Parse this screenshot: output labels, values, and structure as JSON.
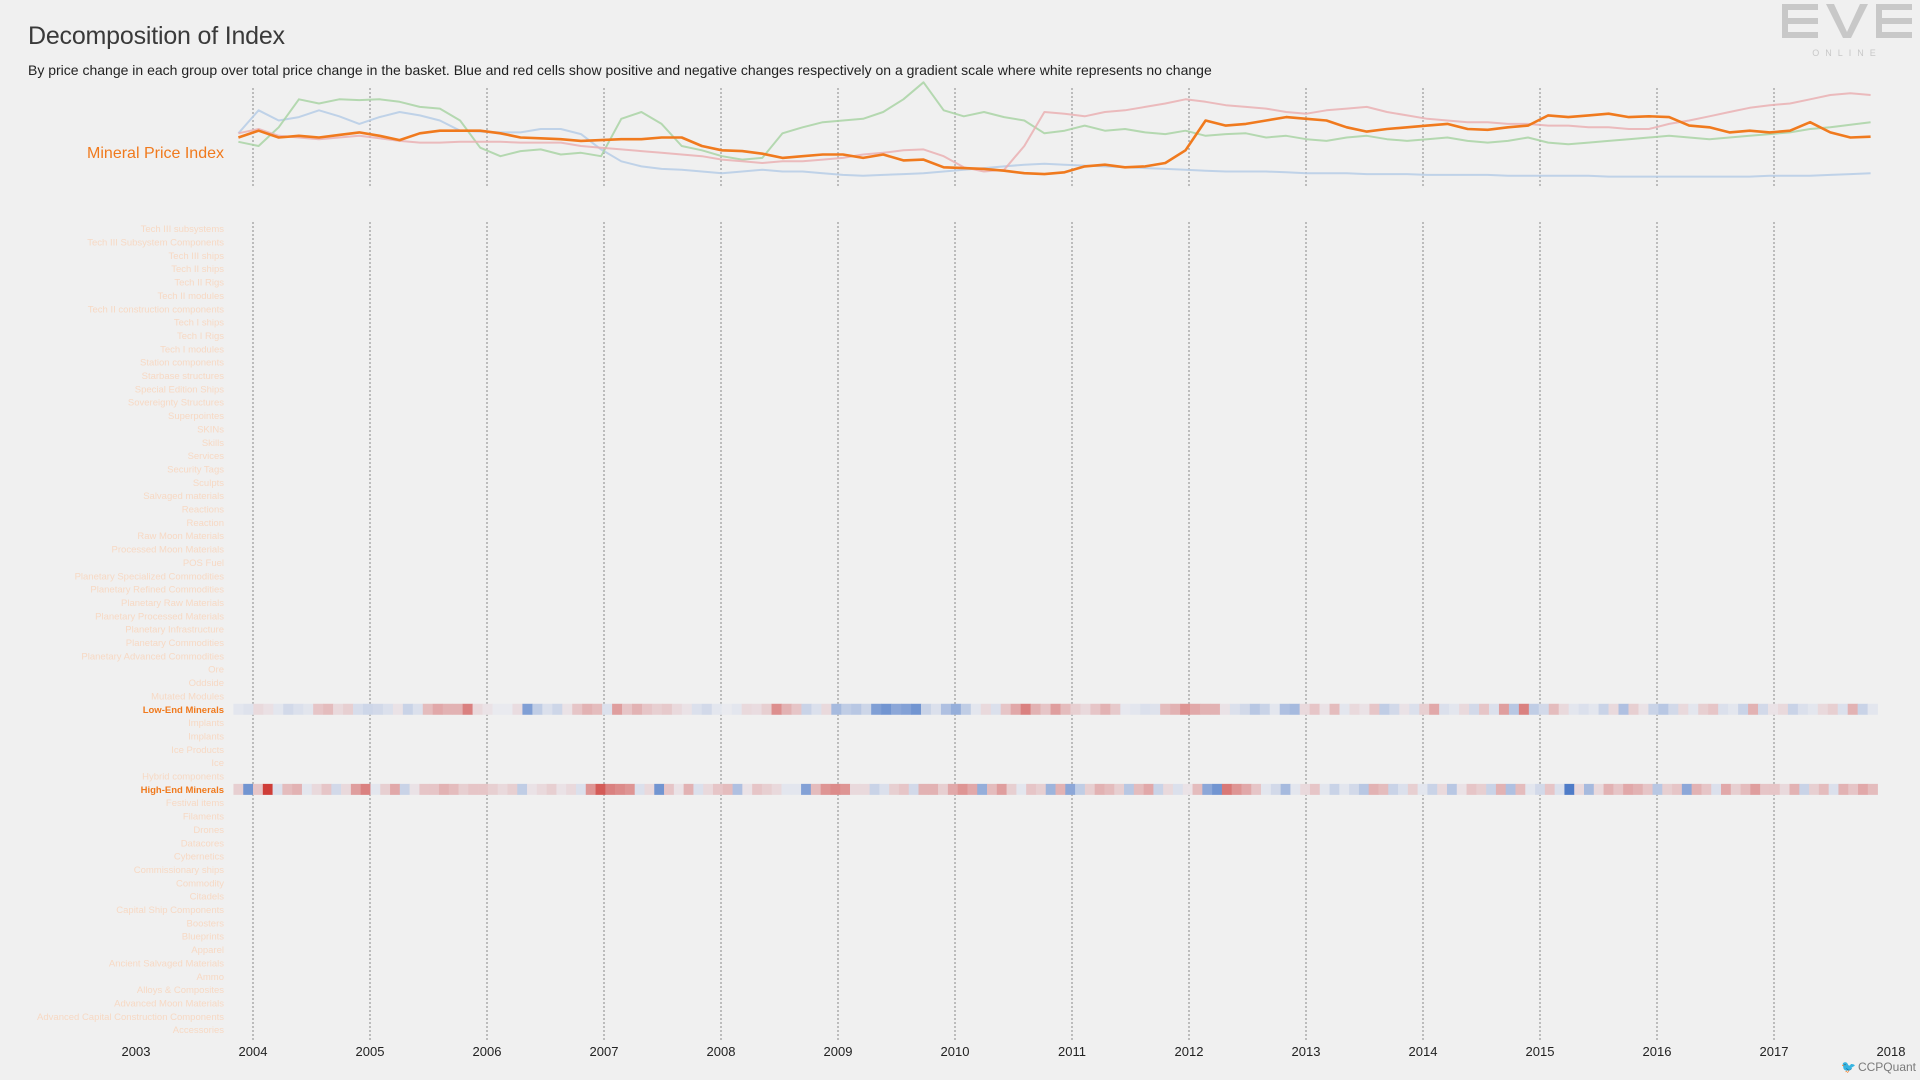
{
  "header": {
    "title": "Decomposition of Index",
    "subtitle": "By price change in each group over total price change in the basket. Blue and red cells show positive and negative changes respectively on a gradient scale where white represents no change"
  },
  "logo": {
    "text": "EVE",
    "subtext": "ONLINE"
  },
  "credit": "CCPQuant",
  "colors": {
    "accent": "#f07a1e",
    "positive": "#3d6fc4",
    "negative": "#cc2a24",
    "faint_label": "#f7d9c4",
    "line_blue": "#b6cde6",
    "line_green": "#a9d4a4",
    "line_pink": "#eab0b3"
  },
  "chart_data": {
    "type": "heatmap",
    "x_ticks": [
      "2003",
      "2004",
      "2005",
      "2006",
      "2007",
      "2008",
      "2009",
      "2010",
      "2011",
      "2012",
      "2013",
      "2014",
      "2015",
      "2016",
      "2017",
      "2018"
    ],
    "xlim": [
      2003,
      2018
    ],
    "data_start": 2003.85,
    "data_end": 2017.8,
    "index_label": "Mineral Price Index",
    "index_series": [
      {
        "name": "Mineral Price Index",
        "color": "#f07a1e",
        "highlight": true,
        "values": [
          0.5,
          0.58,
          0.5,
          0.52,
          0.5,
          0.53,
          0.56,
          0.52,
          0.47,
          0.55,
          0.58,
          0.58,
          0.58,
          0.55,
          0.5,
          0.49,
          0.48,
          0.46,
          0.47,
          0.48,
          0.48,
          0.5,
          0.5,
          0.4,
          0.35,
          0.34,
          0.31,
          0.26,
          0.28,
          0.3,
          0.3,
          0.26,
          0.3,
          0.23,
          0.24,
          0.15,
          0.14,
          0.13,
          0.11,
          0.08,
          0.07,
          0.09,
          0.16,
          0.18,
          0.15,
          0.16,
          0.2,
          0.35,
          0.7,
          0.64,
          0.66,
          0.7,
          0.74,
          0.72,
          0.7,
          0.62,
          0.57,
          0.6,
          0.62,
          0.64,
          0.66,
          0.6,
          0.59,
          0.62,
          0.64,
          0.76,
          0.74,
          0.76,
          0.78,
          0.74,
          0.75,
          0.74,
          0.64,
          0.62,
          0.56,
          0.58,
          0.56,
          0.58,
          0.68,
          0.56,
          0.5,
          0.51
        ]
      },
      {
        "name": "",
        "color": "#b6cde6",
        "values": [
          0.55,
          0.82,
          0.7,
          0.74,
          0.82,
          0.75,
          0.66,
          0.74,
          0.8,
          0.76,
          0.7,
          0.58,
          0.57,
          0.56,
          0.56,
          0.6,
          0.6,
          0.54,
          0.36,
          0.22,
          0.16,
          0.13,
          0.12,
          0.1,
          0.08,
          0.1,
          0.12,
          0.1,
          0.1,
          0.08,
          0.06,
          0.05,
          0.06,
          0.07,
          0.08,
          0.1,
          0.12,
          0.14,
          0.16,
          0.18,
          0.19,
          0.18,
          0.17,
          0.16,
          0.15,
          0.14,
          0.13,
          0.12,
          0.11,
          0.1,
          0.1,
          0.1,
          0.09,
          0.08,
          0.08,
          0.08,
          0.07,
          0.07,
          0.07,
          0.06,
          0.06,
          0.06,
          0.06,
          0.05,
          0.05,
          0.05,
          0.05,
          0.05,
          0.04,
          0.04,
          0.04,
          0.04,
          0.04,
          0.04,
          0.04,
          0.04,
          0.05,
          0.05,
          0.05,
          0.06,
          0.07,
          0.08
        ]
      },
      {
        "name": "",
        "color": "#a9d4a4",
        "values": [
          0.45,
          0.4,
          0.62,
          0.95,
          0.9,
          0.95,
          0.94,
          0.95,
          0.92,
          0.86,
          0.84,
          0.7,
          0.38,
          0.28,
          0.34,
          0.36,
          0.3,
          0.32,
          0.28,
          0.72,
          0.8,
          0.66,
          0.4,
          0.35,
          0.28,
          0.24,
          0.26,
          0.55,
          0.62,
          0.68,
          0.7,
          0.72,
          0.8,
          0.95,
          1.15,
          0.82,
          0.75,
          0.8,
          0.74,
          0.7,
          0.55,
          0.58,
          0.64,
          0.58,
          0.6,
          0.56,
          0.54,
          0.58,
          0.52,
          0.54,
          0.55,
          0.5,
          0.52,
          0.48,
          0.46,
          0.5,
          0.52,
          0.48,
          0.46,
          0.48,
          0.5,
          0.46,
          0.44,
          0.46,
          0.5,
          0.44,
          0.42,
          0.44,
          0.46,
          0.48,
          0.5,
          0.52,
          0.5,
          0.48,
          0.5,
          0.52,
          0.54,
          0.56,
          0.6,
          0.62,
          0.65,
          0.68
        ]
      },
      {
        "name": "",
        "color": "#eab0b3",
        "values": [
          0.55,
          0.6,
          0.52,
          0.5,
          0.48,
          0.5,
          0.52,
          0.49,
          0.46,
          0.44,
          0.44,
          0.45,
          0.45,
          0.45,
          0.44,
          0.44,
          0.44,
          0.4,
          0.38,
          0.36,
          0.34,
          0.32,
          0.3,
          0.28,
          0.24,
          0.22,
          0.2,
          0.22,
          0.22,
          0.24,
          0.26,
          0.3,
          0.32,
          0.35,
          0.36,
          0.28,
          0.15,
          0.1,
          0.12,
          0.4,
          0.8,
          0.78,
          0.75,
          0.8,
          0.82,
          0.86,
          0.9,
          0.95,
          0.92,
          0.88,
          0.86,
          0.84,
          0.8,
          0.78,
          0.82,
          0.84,
          0.86,
          0.8,
          0.76,
          0.72,
          0.7,
          0.68,
          0.68,
          0.66,
          0.66,
          0.64,
          0.64,
          0.62,
          0.62,
          0.6,
          0.6,
          0.66,
          0.7,
          0.75,
          0.8,
          0.85,
          0.88,
          0.9,
          0.95,
          1.0,
          1.02,
          1.0
        ]
      }
    ],
    "rows": [
      {
        "label": "Tech III subsystems"
      },
      {
        "label": "Tech III Subsystem Components"
      },
      {
        "label": "Tech III ships"
      },
      {
        "label": "Tech II ships"
      },
      {
        "label": "Tech II Rigs"
      },
      {
        "label": "Tech II modules"
      },
      {
        "label": "Tech II construction components"
      },
      {
        "label": "Tech I ships"
      },
      {
        "label": "Tech I Rigs"
      },
      {
        "label": "Tech I modules"
      },
      {
        "label": "Station components"
      },
      {
        "label": "Starbase structures"
      },
      {
        "label": "Special Edition Ships"
      },
      {
        "label": "Sovereignty Structures"
      },
      {
        "label": "Superpointes"
      },
      {
        "label": "SKINs"
      },
      {
        "label": "Skills"
      },
      {
        "label": "Services"
      },
      {
        "label": "Security Tags"
      },
      {
        "label": "Sculpts"
      },
      {
        "label": "Salvaged materials"
      },
      {
        "label": "Reactions"
      },
      {
        "label": "Reaction"
      },
      {
        "label": "Raw Moon Materials"
      },
      {
        "label": "Processed Moon Materials"
      },
      {
        "label": "POS Fuel"
      },
      {
        "label": "Planetary Specialized Commodities"
      },
      {
        "label": "Planetary Refined Commodities"
      },
      {
        "label": "Planetary Raw Materials"
      },
      {
        "label": "Planetary Processed Materials"
      },
      {
        "label": "Planetary Infrastructure"
      },
      {
        "label": "Planetary Commodities"
      },
      {
        "label": "Planetary Advanced Commodities"
      },
      {
        "label": "Ore"
      },
      {
        "label": "Oddside"
      },
      {
        "label": "Mutated Modules"
      },
      {
        "label": "Low-End Minerals",
        "highlight": true,
        "values": [
          0.05,
          0.08,
          -0.1,
          -0.06,
          0.05,
          0.15,
          0.1,
          0.06,
          -0.2,
          -0.25,
          -0.1,
          -0.15,
          0.12,
          0.18,
          0.15,
          0.1,
          -0.05,
          0.2,
          0.1,
          -0.25,
          -0.35,
          -0.3,
          -0.3,
          -0.55,
          -0.1,
          -0.05,
          0.02,
          0.02,
          -0.08,
          0.62,
          0.25,
          0.1,
          0.18,
          -0.05,
          -0.2,
          -0.3,
          -0.25,
          0.1,
          -0.4,
          -0.2,
          -0.3,
          -0.2,
          -0.15,
          -0.18,
          -0.1,
          -0.05,
          0.1,
          0.15,
          0.05,
          0.02,
          0.05,
          -0.1,
          -0.08,
          -0.15,
          -0.48,
          -0.3,
          -0.2,
          0.2,
          0.1,
          -0.1,
          0.4,
          0.25,
          0.3,
          0.18,
          0.62,
          0.7,
          0.55,
          0.6,
          0.7,
          0.2,
          0.1,
          0.35,
          0.5,
          0.25,
          0.05,
          -0.1,
          0.1,
          -0.2,
          -0.35,
          -0.55,
          -0.3,
          -0.2,
          -0.4,
          -0.25,
          -0.15,
          -0.1,
          -0.2,
          -0.3,
          -0.18,
          0.03,
          0.05,
          0.1,
          0.08,
          -0.25,
          -0.3,
          -0.45,
          -0.35,
          -0.3,
          -0.3,
          -0.05,
          0.1,
          0.15,
          0.3,
          0.2,
          0.05,
          0.35,
          0.4,
          -0.1,
          -0.2,
          -0.05,
          -0.25,
          0.05,
          -0.1,
          -0.05,
          -0.2,
          0.25,
          0.15,
          -0.05,
          0.1,
          -0.15,
          -0.35,
          0.1,
          0.05,
          -0.1,
          0.15,
          -0.2,
          0.1,
          -0.4,
          0.3,
          -0.55,
          0.25,
          0.15,
          -0.25,
          -0.1,
          0.05,
          0.1,
          0.05,
          0.2,
          -0.1,
          0.35,
          -0.15,
          -0.05,
          0.2,
          0.3,
          0.15,
          -0.1,
          0.05,
          -0.15,
          -0.2,
          0.1,
          0.05,
          0.2,
          -0.3,
          0.15,
          -0.05,
          -0.1,
          0.2,
          0.1,
          0.05,
          -0.1,
          -0.15,
          0.1,
          -0.3,
          0.2,
          0.05
        ]
      },
      {
        "label": "Implants"
      },
      {
        "label": "Implants"
      },
      {
        "label": "Ice Products"
      },
      {
        "label": "Ice"
      },
      {
        "label": "Hybrid components"
      },
      {
        "label": "High-End Minerals",
        "highlight": true,
        "values": [
          -0.15,
          0.7,
          -0.2,
          -0.9,
          0.1,
          -0.25,
          -0.3,
          0.05,
          -0.1,
          -0.2,
          0.15,
          -0.1,
          -0.4,
          -0.55,
          0.05,
          -0.15,
          -0.35,
          0.2,
          -0.05,
          -0.2,
          -0.2,
          -0.3,
          -0.25,
          -0.15,
          -0.2,
          -0.2,
          -0.15,
          -0.1,
          -0.15,
          0.25,
          -0.05,
          -0.1,
          -0.15,
          -0.05,
          -0.1,
          0.1,
          -0.45,
          -0.75,
          -0.55,
          -0.5,
          -0.45,
          0.1,
          -0.1,
          0.7,
          -0.2,
          -0.05,
          -0.3,
          0.1,
          -0.1,
          -0.2,
          -0.25,
          0.35,
          -0.05,
          -0.2,
          -0.15,
          -0.1,
          0.05,
          0.05,
          0.6,
          -0.25,
          -0.45,
          -0.5,
          -0.45,
          -0.1,
          -0.1,
          0.2,
          0.1,
          -0.15,
          -0.2,
          0.15,
          -0.3,
          -0.3,
          -0.15,
          -0.35,
          -0.45,
          -0.35,
          0.5,
          -0.25,
          -0.4,
          -0.15,
          0.05,
          -0.2,
          -0.15,
          0.45,
          -0.3,
          0.55,
          0.25,
          -0.15,
          -0.3,
          -0.25,
          -0.15,
          0.3,
          -0.25,
          -0.35,
          0.2,
          -0.1,
          0.1,
          -0.05,
          -0.25,
          0.55,
          0.7,
          -0.6,
          -0.45,
          -0.35,
          -0.2,
          0.05,
          0.15,
          0.4,
          0.05,
          -0.1,
          -0.2,
          0.05,
          0.2,
          0.05,
          0.15,
          0.3,
          -0.3,
          -0.25,
          0.2,
          0.1,
          -0.15,
          0.05,
          0.2,
          -0.1,
          0.3,
          -0.05,
          -0.2,
          -0.15,
          0.2,
          -0.3,
          0.35,
          -0.25,
          0.05,
          0.15,
          -0.2,
          0.1,
          0.9,
          -0.1,
          0.4,
          -0.1,
          -0.3,
          -0.2,
          -0.35,
          -0.3,
          -0.2,
          0.3,
          -0.15,
          -0.2,
          0.55,
          -0.3,
          -0.2,
          0.1,
          -0.35,
          -0.15,
          -0.25,
          -0.4,
          -0.2,
          -0.2,
          -0.1,
          -0.3,
          0.2,
          -0.15,
          -0.25,
          0.1,
          -0.3,
          -0.2,
          -0.35,
          -0.25
        ]
      },
      {
        "label": "Festival items"
      },
      {
        "label": "Filaments"
      },
      {
        "label": "Drones"
      },
      {
        "label": "Datacores"
      },
      {
        "label": "Cybernetics"
      },
      {
        "label": "Commissionary ships"
      },
      {
        "label": "Commodity"
      },
      {
        "label": "Citadels"
      },
      {
        "label": "Capital Ship Components"
      },
      {
        "label": "Boosters"
      },
      {
        "label": "Blueprints"
      },
      {
        "label": "Apparel"
      },
      {
        "label": "Ancient Salvaged Materials"
      },
      {
        "label": "Ammo"
      },
      {
        "label": "Alloys & Composites"
      },
      {
        "label": "Advanced Moon Materials"
      },
      {
        "label": "Advanced Capital Construction Components"
      },
      {
        "label": "Accessories"
      }
    ]
  }
}
